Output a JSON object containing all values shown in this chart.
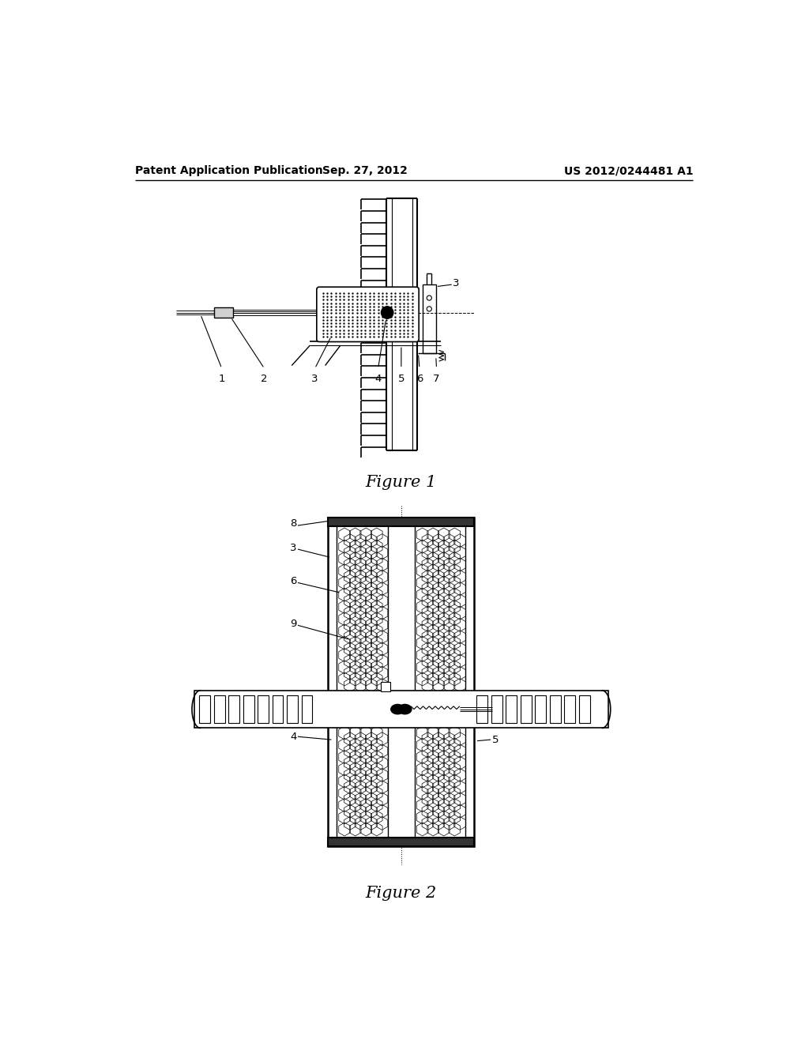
{
  "title_left": "Patent Application Publication",
  "title_center": "Sep. 27, 2012",
  "title_right": "US 2012/0244481 A1",
  "fig1_caption": "Figure 1",
  "fig2_caption": "Figure 2",
  "bg_color": "#ffffff",
  "line_color": "#000000",
  "gray_color": "#888888",
  "light_gray": "#d0d0d0",
  "dark_gray": "#333333",
  "mid_gray": "#aaaaaa"
}
